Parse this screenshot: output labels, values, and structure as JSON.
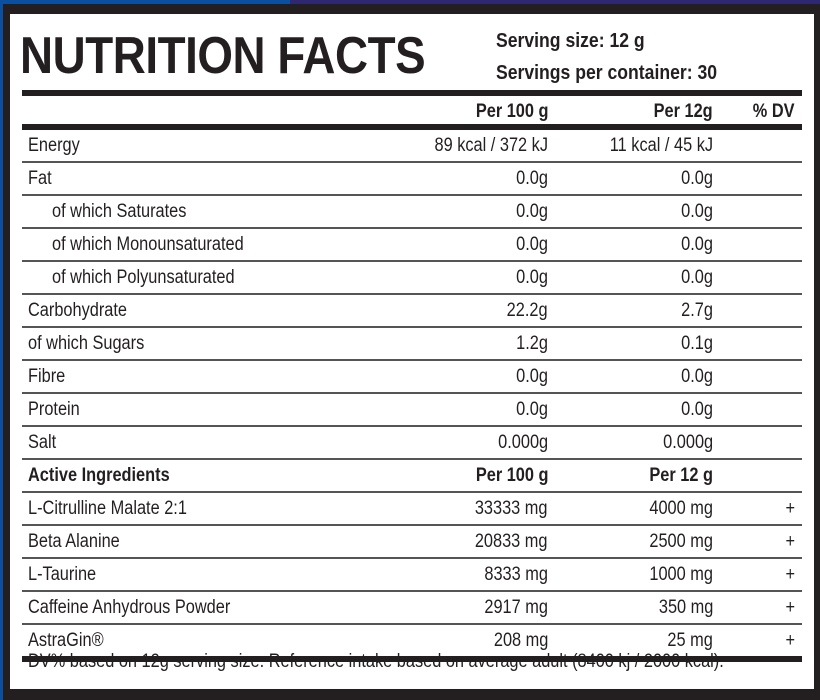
{
  "label": {
    "title": "NUTRITION FACTS",
    "serving_size": "Serving size: 12 g",
    "servings_per_container": "Servings per container: 30",
    "columns": {
      "per100": "Per 100 g",
      "per_serving": "Per 12g",
      "dv": "% DV"
    },
    "nutrients": [
      {
        "name": "Energy",
        "per100": "89 kcal / 372 kJ",
        "per_serving": "11 kcal / 45 kJ",
        "dv": ""
      },
      {
        "name": "Fat",
        "per100": "0.0g",
        "per_serving": "0.0g",
        "dv": ""
      },
      {
        "name": "of which Saturates",
        "per100": "0.0g",
        "per_serving": "0.0g",
        "dv": "",
        "indent": true
      },
      {
        "name": "of which Monounsaturated",
        "per100": "0.0g",
        "per_serving": "0.0g",
        "dv": "",
        "indent": true
      },
      {
        "name": "of which Polyunsaturated",
        "per100": "0.0g",
        "per_serving": "0.0g",
        "dv": "",
        "indent": true
      },
      {
        "name": "Carbohydrate",
        "per100": "22.2g",
        "per_serving": "2.7g",
        "dv": ""
      },
      {
        "name": "of which Sugars",
        "per100": "1.2g",
        "per_serving": "0.1g",
        "dv": ""
      },
      {
        "name": "Fibre",
        "per100": "0.0g",
        "per_serving": "0.0g",
        "dv": ""
      },
      {
        "name": "Protein",
        "per100": "0.0g",
        "per_serving": "0.0g",
        "dv": ""
      },
      {
        "name": "Salt",
        "per100": "0.000g",
        "per_serving": "0.000g",
        "dv": ""
      }
    ],
    "active_header": {
      "name": "Active Ingredients",
      "per100": "Per 100 g",
      "per_serving": "Per 12 g"
    },
    "actives": [
      {
        "name": "L-Citrulline Malate 2:1",
        "per100": "33333 mg",
        "per_serving": "4000 mg",
        "dv": "+"
      },
      {
        "name": "Beta Alanine",
        "per100": "20833 mg",
        "per_serving": "2500 mg",
        "dv": "+"
      },
      {
        "name": "L-Taurine",
        "per100": "8333 mg",
        "per_serving": "1000 mg",
        "dv": "+"
      },
      {
        "name": "Caffeine Anhydrous Powder",
        "per100": "2917 mg",
        "per_serving": "350 mg",
        "dv": "+"
      },
      {
        "name": "AstraGin®",
        "per100": "208 mg",
        "per_serving": "25 mg",
        "dv": "+"
      }
    ],
    "footer": "DV% based on 12g serving size. Reference intake based on average adult (8400 kj / 2000 kcal).",
    "colors": {
      "ink": "#231f20",
      "strip_blue": "#0a4fa0",
      "strip_purple": "#2e2870"
    }
  }
}
